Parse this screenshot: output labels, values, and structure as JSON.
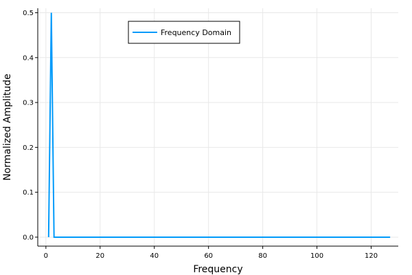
{
  "chart_data": {
    "type": "line",
    "title": "",
    "xlabel": "Frequency",
    "ylabel": "Normalized Amplitude",
    "xlim": [
      -3,
      130
    ],
    "ylim": [
      -0.02,
      0.51
    ],
    "xticks": [
      0,
      20,
      40,
      60,
      80,
      100,
      120
    ],
    "yticks": [
      0.0,
      0.1,
      0.2,
      0.3,
      0.4,
      0.5
    ],
    "ytick_labels": [
      "0.0",
      "0.1",
      "0.2",
      "0.3",
      "0.4",
      "0.5"
    ],
    "grid": true,
    "legend_position": "top-center",
    "series": [
      {
        "name": "Frequency Domain",
        "color": "#009AFA",
        "x": [
          1,
          2,
          3,
          4,
          127
        ],
        "y": [
          0.0,
          0.5,
          0.0,
          0.0,
          0.0
        ]
      }
    ]
  }
}
